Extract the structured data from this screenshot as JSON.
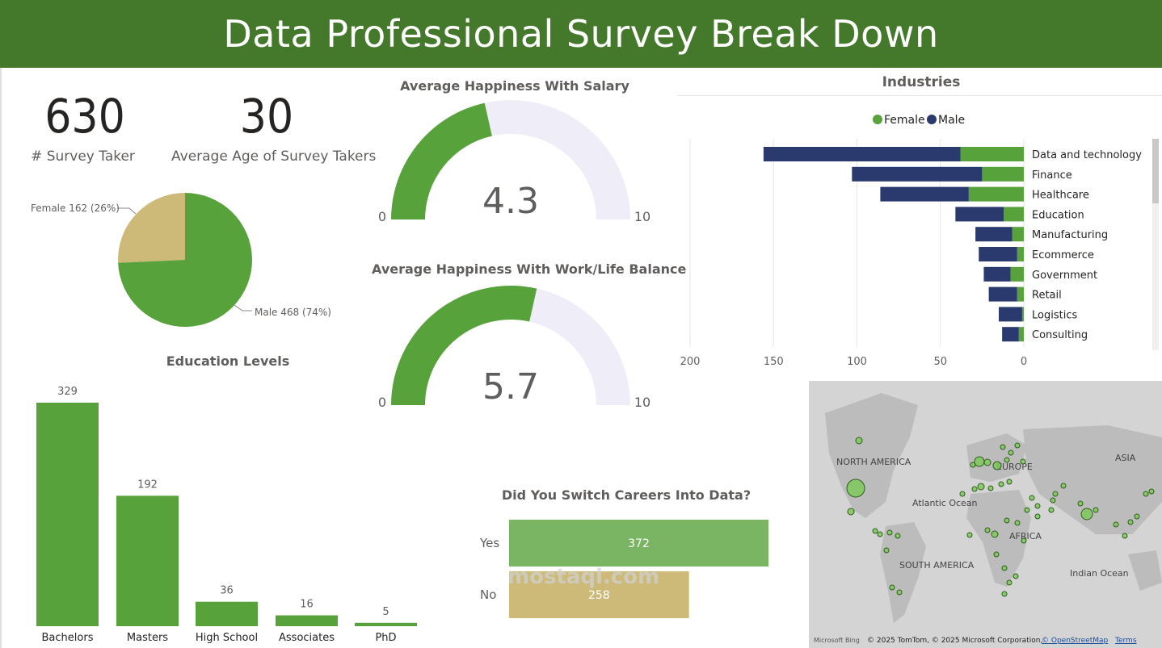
{
  "header": {
    "title": "Data Professional Survey Break Down"
  },
  "kpis": {
    "survey_takers": {
      "value": "630",
      "label": "# Survey Taker"
    },
    "average_age": {
      "value": "30",
      "label": "Average Age of Survey Takers"
    }
  },
  "gender_pie": {
    "female_label": "Female 162 (26%)",
    "male_label": "Male 468 (74%)"
  },
  "happiness_salary": {
    "title": "Average Happiness With Salary",
    "min_label": "0",
    "max_label": "10",
    "value_label": "4.3"
  },
  "happiness_wlb": {
    "title": "Average Happiness With Work/Life Balance",
    "min_label": "0",
    "max_label": "10",
    "value_label": "5.7"
  },
  "industries": {
    "title": "Industries",
    "legend_female": "Female",
    "legend_male": "Male"
  },
  "education": {
    "title": "Education Levels"
  },
  "career_switch": {
    "title": "Did You Switch Careers Into Data?"
  },
  "map": {
    "labels": [
      "NORTH AMERICA",
      "EUROPE",
      "ASIA",
      "Atlantic Ocean",
      "AFRICA",
      "SOUTH AMERICA",
      "Indian Ocean"
    ],
    "footer": "© 2025 TomTom, © 2025 Microsoft Corporation,",
    "footer_link": "© OpenStreetMap",
    "footer_terms": "Terms",
    "bing_label": "Microsoft Bing"
  },
  "watermark": {
    "text": "mostaql.com"
  },
  "colors": {
    "green": "#57a23a",
    "header_green": "#44782b",
    "navy": "#2b3a6e",
    "tan": "#cdb978",
    "light_gauge": "#efedf7",
    "yes_green": "#7ab564",
    "no_tan": "#cdb978"
  },
  "chart_data": [
    {
      "type": "pie",
      "labels": [
        "Female",
        "Male"
      ],
      "values": [
        162,
        468
      ],
      "percentages": [
        26,
        74
      ]
    },
    {
      "type": "gauge",
      "title": "Average Happiness With Salary",
      "value": 4.3,
      "min": 0,
      "max": 10
    },
    {
      "type": "gauge",
      "title": "Average Happiness With Work/Life Balance",
      "value": 5.7,
      "min": 0,
      "max": 10
    },
    {
      "type": "bar",
      "orientation": "horizontal",
      "stacked": true,
      "title": "Industries",
      "categories": [
        "Data and technology",
        "Finance",
        "Healthcare",
        "Education",
        "Manufacturing",
        "Ecommerce",
        "Government",
        "Retail",
        "Logistics",
        "Consulting"
      ],
      "series": [
        {
          "name": "Female",
          "values": [
            38,
            25,
            33,
            12,
            7,
            4,
            8,
            4,
            1,
            3
          ]
        },
        {
          "name": "Male",
          "values": [
            118,
            78,
            53,
            29,
            22,
            23,
            16,
            17,
            14,
            10
          ]
        }
      ],
      "xticks": [
        "200",
        "150",
        "100",
        "50",
        "0"
      ],
      "xlim": [
        200,
        0
      ],
      "legend": "top"
    },
    {
      "type": "bar",
      "title": "Education Levels",
      "categories": [
        "Bachelors",
        "Masters",
        "High School",
        "Associates",
        "PhD"
      ],
      "values": [
        329,
        192,
        36,
        16,
        5
      ],
      "ylim": [
        0,
        329
      ]
    },
    {
      "type": "bar",
      "orientation": "horizontal",
      "title": "Did You Switch Careers Into Data?",
      "categories": [
        "Yes",
        "No"
      ],
      "values": [
        372,
        258
      ]
    }
  ]
}
